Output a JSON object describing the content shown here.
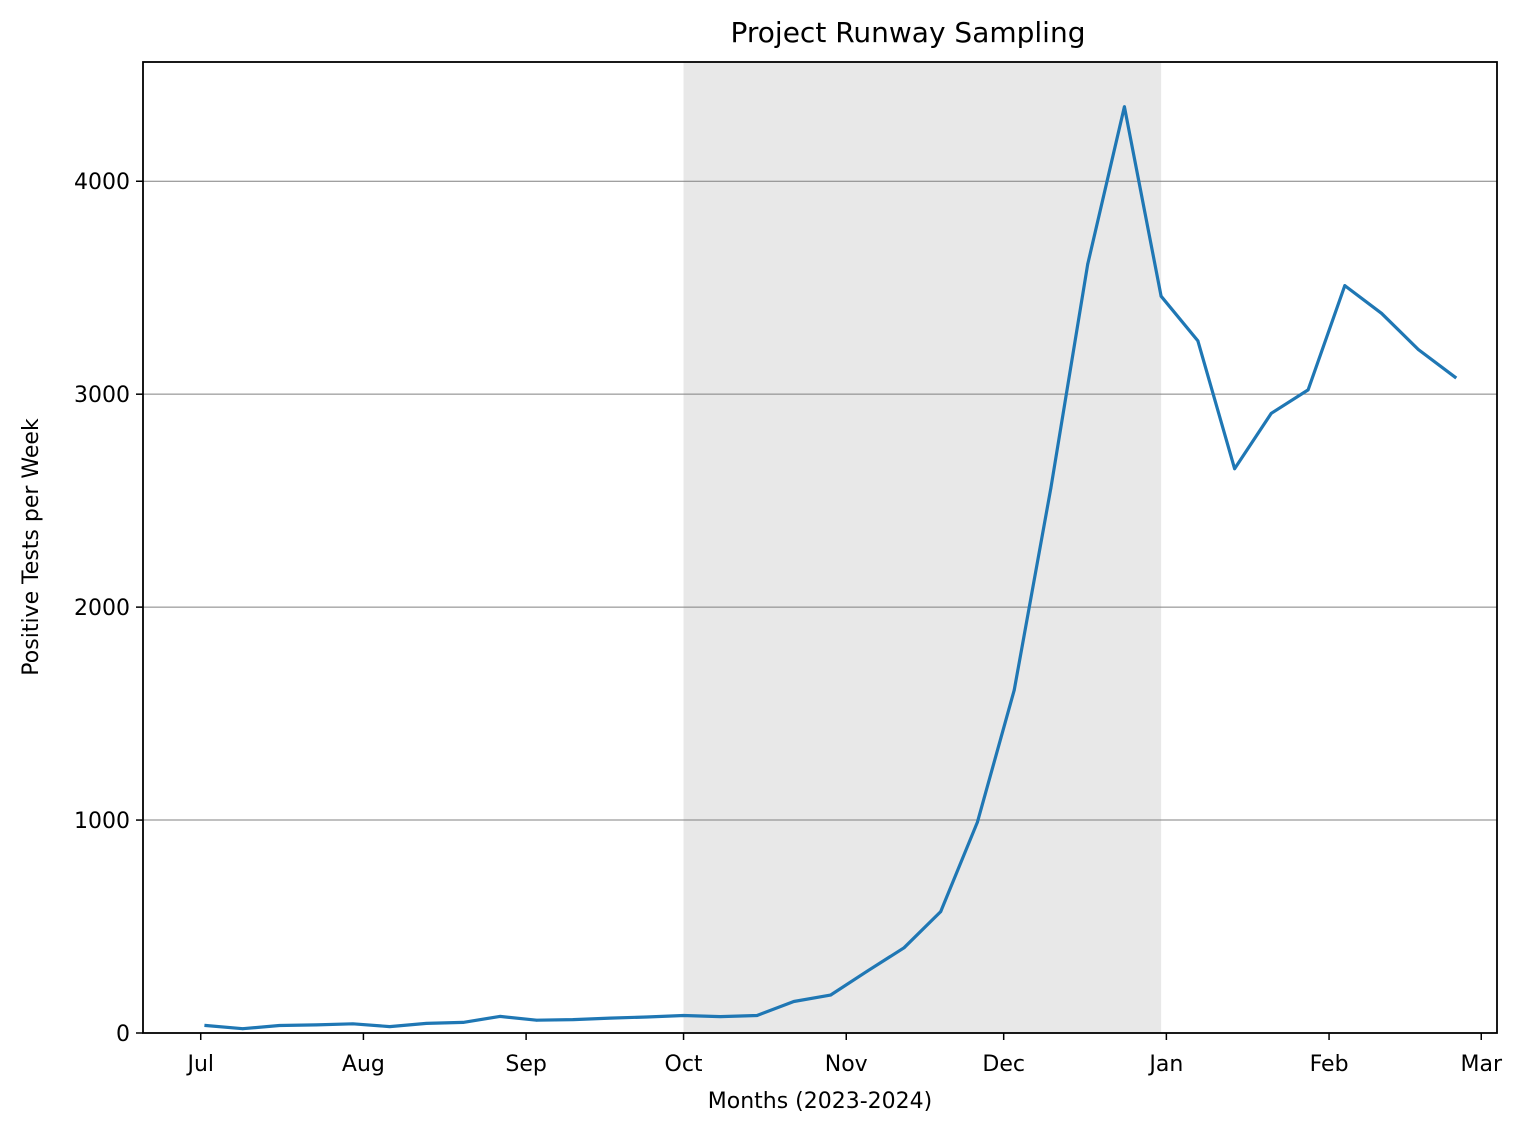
{
  "chart_data": {
    "type": "line",
    "title": "Project Runway Sampling",
    "xlabel": "Months (2023-2024)",
    "ylabel": "Positive Tests per Week",
    "ylim": [
      0,
      4560
    ],
    "xlim": [
      "2023-06-20",
      "2024-03-04"
    ],
    "grid": "horizontal",
    "yticks": [
      0,
      1000,
      2000,
      3000,
      4000
    ],
    "xticks": [
      {
        "date": "2023-07-01",
        "label": "Jul"
      },
      {
        "date": "2023-08-01",
        "label": "Aug"
      },
      {
        "date": "2023-09-01",
        "label": "Sep"
      },
      {
        "date": "2023-10-01",
        "label": "Oct"
      },
      {
        "date": "2023-11-01",
        "label": "Nov"
      },
      {
        "date": "2023-12-01",
        "label": "Dec"
      },
      {
        "date": "2024-01-01",
        "label": "Jan"
      },
      {
        "date": "2024-02-01",
        "label": "Feb"
      },
      {
        "date": "2024-03-01",
        "label": "Mar"
      }
    ],
    "shaded_region": {
      "start": "2023-10-01",
      "end": "2023-12-31",
      "color": "#e8e8e8"
    },
    "series": [
      {
        "color": "#1f77b4",
        "x": [
          "2023-07-02",
          "2023-07-09",
          "2023-07-16",
          "2023-07-23",
          "2023-07-30",
          "2023-08-06",
          "2023-08-13",
          "2023-08-20",
          "2023-08-27",
          "2023-09-03",
          "2023-09-10",
          "2023-09-17",
          "2023-09-24",
          "2023-10-01",
          "2023-10-08",
          "2023-10-15",
          "2023-10-22",
          "2023-10-29",
          "2023-11-05",
          "2023-11-12",
          "2023-11-19",
          "2023-11-26",
          "2023-12-03",
          "2023-12-10",
          "2023-12-17",
          "2023-12-24",
          "2023-12-31",
          "2024-01-07",
          "2024-01-14",
          "2024-01-21",
          "2024-01-28",
          "2024-02-04",
          "2024-02-11",
          "2024-02-18",
          "2024-02-25"
        ],
        "y": [
          35,
          20,
          35,
          38,
          43,
          30,
          45,
          50,
          78,
          60,
          63,
          70,
          75,
          82,
          77,
          82,
          148,
          178,
          290,
          400,
          570,
          990,
          1610,
          2560,
          3610,
          4350,
          3460,
          3250,
          2650,
          2910,
          3020,
          3510,
          3380,
          3210,
          3080
        ]
      }
    ]
  }
}
